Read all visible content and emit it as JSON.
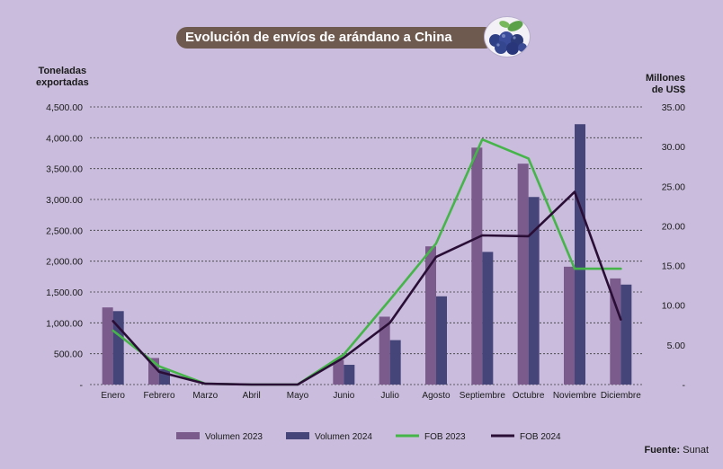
{
  "header": {
    "title": "Evolución de envíos de arándano a China"
  },
  "source": {
    "label": "Fuente:",
    "value": "Sunat"
  },
  "chart_data": {
    "type": "bar",
    "title": "Evolución de envíos de arándano a China",
    "ylabel_left": [
      "Toneladas",
      "exportadas"
    ],
    "ylabel_right": [
      "Millones",
      "de US$"
    ],
    "categories": [
      "Enero",
      "Febrero",
      "Marzo",
      "Abril",
      "Mayo",
      "Junio",
      "Julio",
      "Agosto",
      "Septiembre",
      "Octubre",
      "Noviembre",
      "Diciembre"
    ],
    "y_left_ticks": [
      "-",
      "500.00",
      "1,000.00",
      "1,500.00",
      "2,000.00",
      "2,500.00",
      "3,000.00",
      "3,500.00",
      "4,000.00",
      "4,500.00"
    ],
    "y_right_ticks": [
      "-",
      "5.00",
      "10.00",
      "15.00",
      "20.00",
      "25.00",
      "30.00",
      "35.00"
    ],
    "ylim_left": [
      0,
      4500
    ],
    "ylim_right": [
      0,
      35
    ],
    "grid": true,
    "legend_position": "bottom",
    "series": [
      {
        "name": "Volumen 2023",
        "kind": "bar",
        "axis": "left",
        "color": "#7b5a8c",
        "values": [
          1250,
          430,
          0,
          0,
          0,
          400,
          1100,
          2240,
          3840,
          3580,
          1910,
          1720
        ]
      },
      {
        "name": "Volumen 2024",
        "kind": "bar",
        "axis": "left",
        "color": "#46457a",
        "values": [
          1190,
          250,
          0,
          0,
          0,
          320,
          720,
          1430,
          2150,
          3040,
          4220,
          1620
        ]
      },
      {
        "name": "FOB 2023",
        "kind": "line",
        "axis": "right",
        "color": "#45b549",
        "values": [
          6.8,
          2.3,
          0.1,
          0,
          0,
          3.8,
          10.7,
          17.8,
          30.9,
          28.5,
          14.6,
          14.6
        ]
      },
      {
        "name": "FOB 2024",
        "kind": "line",
        "axis": "right",
        "color": "#2a0e36",
        "values": [
          8.0,
          1.6,
          0.1,
          0,
          0,
          3.4,
          7.8,
          16.1,
          18.8,
          18.7,
          24.3,
          8.2
        ]
      }
    ]
  }
}
